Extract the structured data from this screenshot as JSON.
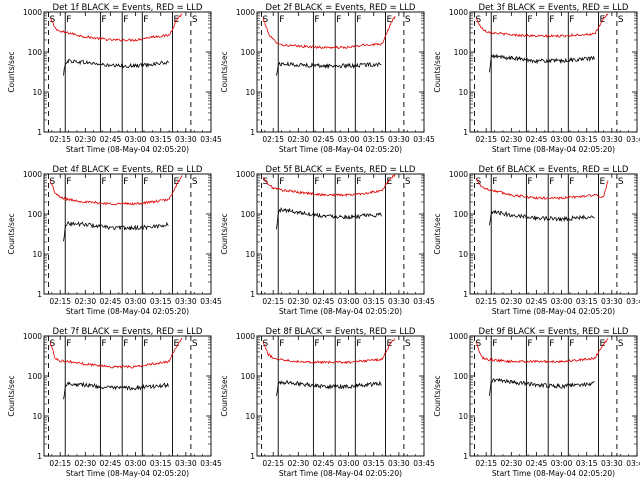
{
  "colors": {
    "events": "#000000",
    "lld": "#e00000",
    "axis": "#000000",
    "background": "#ffffff"
  },
  "chart_data": [
    {
      "type": "line",
      "title": "Det 1f BLACK = Events, RED = LLD",
      "xlabel": "Start Time (08-May-04 02:05:20)",
      "ylabel": "Counts/sec",
      "yscale": "log",
      "ylim": [
        1,
        1000
      ],
      "x_ticks": [
        "02:15",
        "02:30",
        "02:45",
        "03:00",
        "03:15",
        "03:30",
        "03:45"
      ],
      "y_ticks": [
        "1",
        "10",
        "100",
        "1000"
      ],
      "markers": [
        {
          "label": "S",
          "time": "02:08"
        },
        {
          "label": "F",
          "time": "02:18"
        },
        {
          "label": "F",
          "time": "02:39"
        },
        {
          "label": "F",
          "time": "02:52"
        },
        {
          "label": "F",
          "time": "03:04"
        },
        {
          "label": "E",
          "time": "03:22"
        },
        {
          "label": "S",
          "time": "03:33"
        }
      ],
      "series": [
        {
          "name": "LLD",
          "x": [
            "02:09",
            "02:12",
            "02:15",
            "02:20",
            "02:30",
            "02:45",
            "03:00",
            "03:10",
            "03:20",
            "03:25",
            "03:28"
          ],
          "values": [
            700,
            400,
            320,
            300,
            240,
            200,
            200,
            240,
            260,
            700,
            900
          ]
        },
        {
          "name": "Events",
          "x": [
            "02:17",
            "02:18",
            "02:20",
            "02:30",
            "02:45",
            "03:00",
            "03:10",
            "03:20"
          ],
          "values": [
            25,
            55,
            60,
            55,
            45,
            45,
            50,
            55
          ]
        }
      ]
    },
    {
      "type": "line",
      "title": "Det 2f BLACK = Events, RED = LLD",
      "xlabel": "Start Time (08-May-04 02:05:20)",
      "ylabel": "Counts/sec",
      "yscale": "log",
      "ylim": [
        1,
        1000
      ],
      "x_ticks": [
        "02:15",
        "02:30",
        "02:45",
        "03:00",
        "03:15",
        "03:30",
        "03:45"
      ],
      "y_ticks": [
        "1",
        "10",
        "100",
        "1000"
      ],
      "markers": [
        {
          "label": "S",
          "time": "02:08"
        },
        {
          "label": "F",
          "time": "02:18"
        },
        {
          "label": "F",
          "time": "02:39"
        },
        {
          "label": "F",
          "time": "02:52"
        },
        {
          "label": "F",
          "time": "03:04"
        },
        {
          "label": "E",
          "time": "03:22"
        },
        {
          "label": "S",
          "time": "03:33"
        }
      ],
      "series": [
        {
          "name": "LLD",
          "x": [
            "02:09",
            "02:12",
            "02:15",
            "02:20",
            "02:30",
            "02:45",
            "03:00",
            "03:10",
            "03:20",
            "03:25",
            "03:28"
          ],
          "values": [
            700,
            300,
            200,
            150,
            140,
            130,
            130,
            150,
            160,
            500,
            800
          ]
        },
        {
          "name": "Events",
          "x": [
            "02:17",
            "02:18",
            "02:20",
            "02:30",
            "02:45",
            "03:00",
            "03:10",
            "03:20"
          ],
          "values": [
            25,
            50,
            50,
            48,
            45,
            45,
            48,
            50
          ]
        }
      ]
    },
    {
      "type": "line",
      "title": "Det 3f BLACK = Events, RED = LLD",
      "xlabel": "Start Time (08-May-04 02:05:20)",
      "ylabel": "Counts/sec",
      "yscale": "log",
      "ylim": [
        1,
        1000
      ],
      "x_ticks": [
        "02:15",
        "02:30",
        "02:45",
        "03:00",
        "03:15",
        "03:30",
        "03:45"
      ],
      "y_ticks": [
        "1",
        "10",
        "100",
        "1000"
      ],
      "markers": [
        {
          "label": "S",
          "time": "02:08"
        },
        {
          "label": "F",
          "time": "02:18"
        },
        {
          "label": "F",
          "time": "02:39"
        },
        {
          "label": "F",
          "time": "02:52"
        },
        {
          "label": "F",
          "time": "03:04"
        },
        {
          "label": "E",
          "time": "03:22"
        },
        {
          "label": "S",
          "time": "03:33"
        }
      ],
      "series": [
        {
          "name": "LLD",
          "x": [
            "02:09",
            "02:12",
            "02:15",
            "02:20",
            "02:30",
            "02:45",
            "03:00",
            "03:10",
            "03:20",
            "03:25",
            "03:28"
          ],
          "values": [
            700,
            400,
            330,
            300,
            270,
            250,
            250,
            270,
            280,
            700,
            900
          ]
        },
        {
          "name": "Events",
          "x": [
            "02:17",
            "02:18",
            "02:20",
            "02:30",
            "02:45",
            "03:00",
            "03:10",
            "03:20"
          ],
          "values": [
            30,
            75,
            78,
            70,
            60,
            60,
            65,
            70
          ]
        }
      ]
    },
    {
      "type": "line",
      "title": "Det 4f BLACK = Events, RED = LLD",
      "xlabel": "Start Time (08-May-04 02:05:20)",
      "ylabel": "Counts/sec",
      "yscale": "log",
      "ylim": [
        1,
        1000
      ],
      "x_ticks": [
        "02:15",
        "02:30",
        "02:45",
        "03:00",
        "03:15",
        "03:30",
        "03:45"
      ],
      "y_ticks": [
        "1",
        "10",
        "100",
        "1000"
      ],
      "markers": [
        {
          "label": "S",
          "time": "02:08"
        },
        {
          "label": "F",
          "time": "02:18"
        },
        {
          "label": "F",
          "time": "02:39"
        },
        {
          "label": "F",
          "time": "02:52"
        },
        {
          "label": "F",
          "time": "03:04"
        },
        {
          "label": "E",
          "time": "03:22"
        },
        {
          "label": "S",
          "time": "03:33"
        }
      ],
      "series": [
        {
          "name": "LLD",
          "x": [
            "02:09",
            "02:12",
            "02:15",
            "02:20",
            "02:30",
            "02:45",
            "03:00",
            "03:10",
            "03:20",
            "03:25",
            "03:28"
          ],
          "values": [
            700,
            330,
            260,
            230,
            200,
            180,
            180,
            200,
            230,
            600,
            900
          ]
        },
        {
          "name": "Events",
          "x": [
            "02:17",
            "02:18",
            "02:20",
            "02:30",
            "02:45",
            "03:00",
            "03:10",
            "03:20"
          ],
          "values": [
            20,
            55,
            58,
            55,
            45,
            45,
            48,
            55
          ]
        }
      ]
    },
    {
      "type": "line",
      "title": "Det 5f BLACK = Events, RED = LLD",
      "xlabel": "Start Time (08-May-04 02:05:20)",
      "ylabel": "Counts/sec",
      "yscale": "log",
      "ylim": [
        1,
        1000
      ],
      "x_ticks": [
        "02:15",
        "02:30",
        "02:45",
        "03:00",
        "03:15",
        "03:30",
        "03:45"
      ],
      "y_ticks": [
        "1",
        "10",
        "100",
        "1000"
      ],
      "markers": [
        {
          "label": "S",
          "time": "02:08"
        },
        {
          "label": "F",
          "time": "02:18"
        },
        {
          "label": "F",
          "time": "02:39"
        },
        {
          "label": "F",
          "time": "02:52"
        },
        {
          "label": "F",
          "time": "03:04"
        },
        {
          "label": "E",
          "time": "03:22"
        },
        {
          "label": "S",
          "time": "03:33"
        }
      ],
      "series": [
        {
          "name": "LLD",
          "x": [
            "02:09",
            "02:12",
            "02:15",
            "02:20",
            "02:30",
            "02:45",
            "03:00",
            "03:10",
            "03:20",
            "03:25",
            "03:28"
          ],
          "values": [
            800,
            550,
            450,
            400,
            350,
            300,
            300,
            330,
            380,
            800,
            950
          ]
        },
        {
          "name": "Events",
          "x": [
            "02:17",
            "02:18",
            "02:20",
            "02:30",
            "02:45",
            "03:00",
            "03:10",
            "03:20"
          ],
          "values": [
            40,
            110,
            130,
            110,
            90,
            85,
            90,
            95
          ]
        }
      ]
    },
    {
      "type": "line",
      "title": "Det 6f BLACK = Events, RED = LLD",
      "xlabel": "Start Time (08-May-04 02:05:20)",
      "ylabel": "Counts/sec",
      "yscale": "log",
      "ylim": [
        1,
        1000
      ],
      "x_ticks": [
        "02:15",
        "02:30",
        "02:45",
        "03:00",
        "03:15",
        "03:30",
        "03:45"
      ],
      "y_ticks": [
        "1",
        "10",
        "100",
        "1000"
      ],
      "markers": [
        {
          "label": "S",
          "time": "02:08"
        },
        {
          "label": "F",
          "time": "02:18"
        },
        {
          "label": "F",
          "time": "02:39"
        },
        {
          "label": "F",
          "time": "02:52"
        },
        {
          "label": "F",
          "time": "03:04"
        },
        {
          "label": "E",
          "time": "03:22"
        },
        {
          "label": "S",
          "time": "03:33"
        }
      ],
      "series": [
        {
          "name": "LLD",
          "x": [
            "02:09",
            "02:12",
            "02:15",
            "02:20",
            "02:30",
            "02:45",
            "03:00",
            "03:10",
            "03:20",
            "03:25",
            "03:28"
          ],
          "values": [
            750,
            500,
            420,
            380,
            300,
            250,
            250,
            270,
            300,
            250,
            800
          ]
        },
        {
          "name": "Events",
          "x": [
            "02:17",
            "02:18",
            "02:20",
            "02:30",
            "02:45",
            "03:00",
            "03:10",
            "03:20"
          ],
          "values": [
            50,
            100,
            110,
            95,
            80,
            75,
            80,
            85
          ]
        }
      ]
    },
    {
      "type": "line",
      "title": "Det 7f BLACK = Events, RED = LLD",
      "xlabel": "Start Time (08-May-04 02:05:20)",
      "ylabel": "Counts/sec",
      "yscale": "log",
      "ylim": [
        1,
        1000
      ],
      "x_ticks": [
        "02:15",
        "02:30",
        "02:45",
        "03:00",
        "03:15",
        "03:30",
        "03:45"
      ],
      "y_ticks": [
        "1",
        "10",
        "100",
        "1000"
      ],
      "markers": [
        {
          "label": "S",
          "time": "02:08"
        },
        {
          "label": "F",
          "time": "02:18"
        },
        {
          "label": "F",
          "time": "02:39"
        },
        {
          "label": "F",
          "time": "02:52"
        },
        {
          "label": "F",
          "time": "03:04"
        },
        {
          "label": "E",
          "time": "03:22"
        },
        {
          "label": "S",
          "time": "03:33"
        }
      ],
      "series": [
        {
          "name": "LLD",
          "x": [
            "02:09",
            "02:12",
            "02:15",
            "02:20",
            "02:30",
            "02:45",
            "03:00",
            "03:10",
            "03:20",
            "03:25",
            "03:28"
          ],
          "values": [
            700,
            280,
            240,
            230,
            200,
            170,
            170,
            200,
            230,
            600,
            900
          ]
        },
        {
          "name": "Events",
          "x": [
            "02:17",
            "02:18",
            "02:20",
            "02:30",
            "02:45",
            "03:00",
            "03:10",
            "03:20"
          ],
          "values": [
            25,
            60,
            65,
            60,
            50,
            50,
            55,
            60
          ]
        }
      ]
    },
    {
      "type": "line",
      "title": "Det 8f BLACK = Events, RED = LLD",
      "xlabel": "Start Time (08-May-04 02:05:20)",
      "ylabel": "Counts/sec",
      "yscale": "log",
      "ylim": [
        1,
        1000
      ],
      "x_ticks": [
        "02:15",
        "02:30",
        "02:45",
        "03:00",
        "03:15",
        "03:30",
        "03:45"
      ],
      "y_ticks": [
        "1",
        "10",
        "100",
        "1000"
      ],
      "markers": [
        {
          "label": "S",
          "time": "02:08"
        },
        {
          "label": "F",
          "time": "02:18"
        },
        {
          "label": "F",
          "time": "02:39"
        },
        {
          "label": "F",
          "time": "02:52"
        },
        {
          "label": "F",
          "time": "03:04"
        },
        {
          "label": "E",
          "time": "03:22"
        },
        {
          "label": "S",
          "time": "03:33"
        }
      ],
      "series": [
        {
          "name": "LLD",
          "x": [
            "02:09",
            "02:12",
            "02:15",
            "02:20",
            "02:30",
            "02:45",
            "03:00",
            "03:10",
            "03:20",
            "03:25",
            "03:28"
          ],
          "values": [
            700,
            350,
            280,
            260,
            230,
            220,
            220,
            240,
            260,
            650,
            900
          ]
        },
        {
          "name": "Events",
          "x": [
            "02:17",
            "02:18",
            "02:20",
            "02:30",
            "02:45",
            "03:00",
            "03:10",
            "03:20"
          ],
          "values": [
            30,
            65,
            70,
            65,
            55,
            55,
            60,
            65
          ]
        }
      ]
    },
    {
      "type": "line",
      "title": "Det 9f BLACK = Events, RED = LLD",
      "xlabel": "Start Time (08-May-04 02:05:20)",
      "ylabel": "Counts/sec",
      "yscale": "log",
      "ylim": [
        1,
        1000
      ],
      "x_ticks": [
        "02:15",
        "02:30",
        "02:45",
        "03:00",
        "03:15",
        "03:30",
        "03:45"
      ],
      "y_ticks": [
        "1",
        "10",
        "100",
        "1000"
      ],
      "markers": [
        {
          "label": "S",
          "time": "02:08"
        },
        {
          "label": "F",
          "time": "02:18"
        },
        {
          "label": "F",
          "time": "02:39"
        },
        {
          "label": "F",
          "time": "02:52"
        },
        {
          "label": "F",
          "time": "03:04"
        },
        {
          "label": "E",
          "time": "03:22"
        },
        {
          "label": "S",
          "time": "03:33"
        }
      ],
      "series": [
        {
          "name": "LLD",
          "x": [
            "02:09",
            "02:12",
            "02:15",
            "02:20",
            "02:30",
            "02:45",
            "03:00",
            "03:10",
            "03:20",
            "03:25",
            "03:28"
          ],
          "values": [
            700,
            300,
            260,
            250,
            230,
            230,
            230,
            250,
            280,
            650,
            900
          ]
        },
        {
          "name": "Events",
          "x": [
            "02:17",
            "02:18",
            "02:20",
            "02:30",
            "02:45",
            "03:00",
            "03:10",
            "03:20"
          ],
          "values": [
            30,
            75,
            80,
            70,
            60,
            55,
            60,
            65
          ]
        }
      ]
    }
  ]
}
